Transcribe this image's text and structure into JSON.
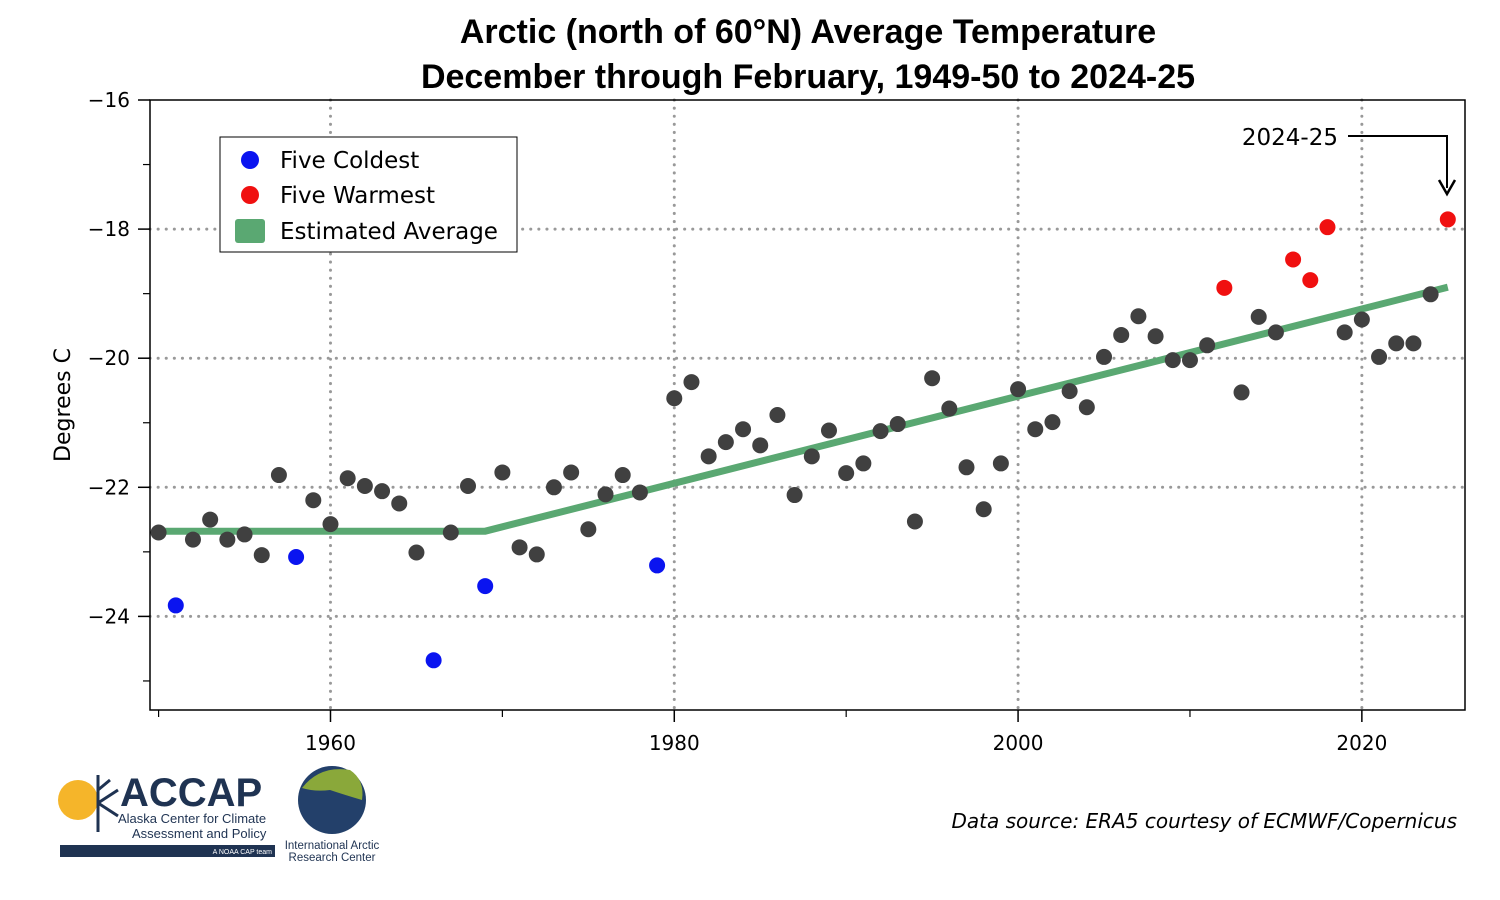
{
  "chart_data": {
    "type": "scatter",
    "title": [
      "Arctic (north of 60°N) Average Temperature",
      "December through February, 1949-50 to 2024-25"
    ],
    "xlabel": "",
    "ylabel": "Degrees C",
    "xlim": [
      1949.5,
      2026
    ],
    "ylim": [
      -25.45,
      -16
    ],
    "x_ticks": [
      1960,
      1980,
      2000,
      2020
    ],
    "x_minor_ticks": [
      1950,
      1970,
      1990,
      2010
    ],
    "y_ticks": [
      -16,
      -18,
      -20,
      -22,
      -24
    ],
    "y_tick_labels": [
      "−16",
      "−18",
      "−20",
      "−22",
      "−24"
    ],
    "y_minor_ticks": [
      -17,
      -19,
      -21,
      -23,
      -25
    ],
    "grid": "dotted, major ticks",
    "legend": {
      "placement": "top-left",
      "entries": [
        "Five Coldest",
        "Five Warmest",
        "Estimated Average"
      ]
    },
    "colors": {
      "normal": "#404040",
      "coldest": "#0a14f0",
      "warmest": "#f01010",
      "average": "#5aa872",
      "grid": "#999999"
    },
    "x": [
      1950,
      1951,
      1952,
      1953,
      1954,
      1955,
      1956,
      1957,
      1958,
      1959,
      1960,
      1961,
      1962,
      1963,
      1964,
      1965,
      1966,
      1967,
      1968,
      1969,
      1970,
      1971,
      1972,
      1973,
      1974,
      1975,
      1976,
      1977,
      1978,
      1979,
      1980,
      1981,
      1982,
      1983,
      1984,
      1985,
      1986,
      1987,
      1988,
      1989,
      1990,
      1991,
      1992,
      1993,
      1994,
      1995,
      1996,
      1997,
      1998,
      1999,
      2000,
      2001,
      2002,
      2003,
      2004,
      2005,
      2006,
      2007,
      2008,
      2009,
      2010,
      2011,
      2012,
      2013,
      2014,
      2015,
      2016,
      2017,
      2018,
      2019,
      2020,
      2021,
      2022,
      2023,
      2024,
      2025
    ],
    "y": [
      -22.7,
      -23.83,
      -22.81,
      -22.5,
      -22.81,
      -22.73,
      -23.05,
      -21.81,
      -23.08,
      -22.2,
      -22.57,
      -21.86,
      -21.98,
      -22.06,
      -22.25,
      -23.01,
      -24.68,
      -22.7,
      -21.98,
      -23.53,
      -21.77,
      -22.93,
      -23.04,
      -22.0,
      -21.77,
      -22.65,
      -22.11,
      -21.81,
      -22.08,
      -23.21,
      -20.62,
      -20.37,
      -21.52,
      -21.3,
      -21.1,
      -21.35,
      -20.88,
      -22.12,
      -21.52,
      -21.12,
      -21.78,
      -21.63,
      -21.13,
      -21.02,
      -22.53,
      -20.31,
      -20.78,
      -21.69,
      -22.34,
      -21.63,
      -20.48,
      -21.1,
      -20.99,
      -20.51,
      -20.76,
      -19.98,
      -19.64,
      -19.35,
      -19.66,
      -20.03,
      -20.03,
      -19.8,
      -18.91,
      -20.53,
      -19.36,
      -19.6,
      -18.47,
      -18.79,
      -17.97,
      -19.6,
      -19.4,
      -19.98,
      -19.77,
      -19.77,
      -19.01,
      -17.85
    ],
    "coldest_years": [
      1951,
      1958,
      1966,
      1969,
      1979
    ],
    "warmest_years": [
      2012,
      2016,
      2017,
      2018,
      2025
    ],
    "estimated_average": {
      "x": [
        1950,
        1969,
        2025
      ],
      "y": [
        -22.68,
        -22.68,
        -18.9
      ]
    },
    "annotation": {
      "text": "2024-25",
      "points_to_year": 2025
    }
  },
  "footer": {
    "source": "Data source: ERA5 courtesy of ECMWF/Copernicus",
    "logo_accap": {
      "name": "ACCAP",
      "line1": "Alaska Center for Climate",
      "line2": "Assessment and Policy",
      "tagline": "A NOAA CAP team"
    },
    "logo_iarc": {
      "line1": "International Arctic",
      "line2": "Research Center"
    }
  }
}
